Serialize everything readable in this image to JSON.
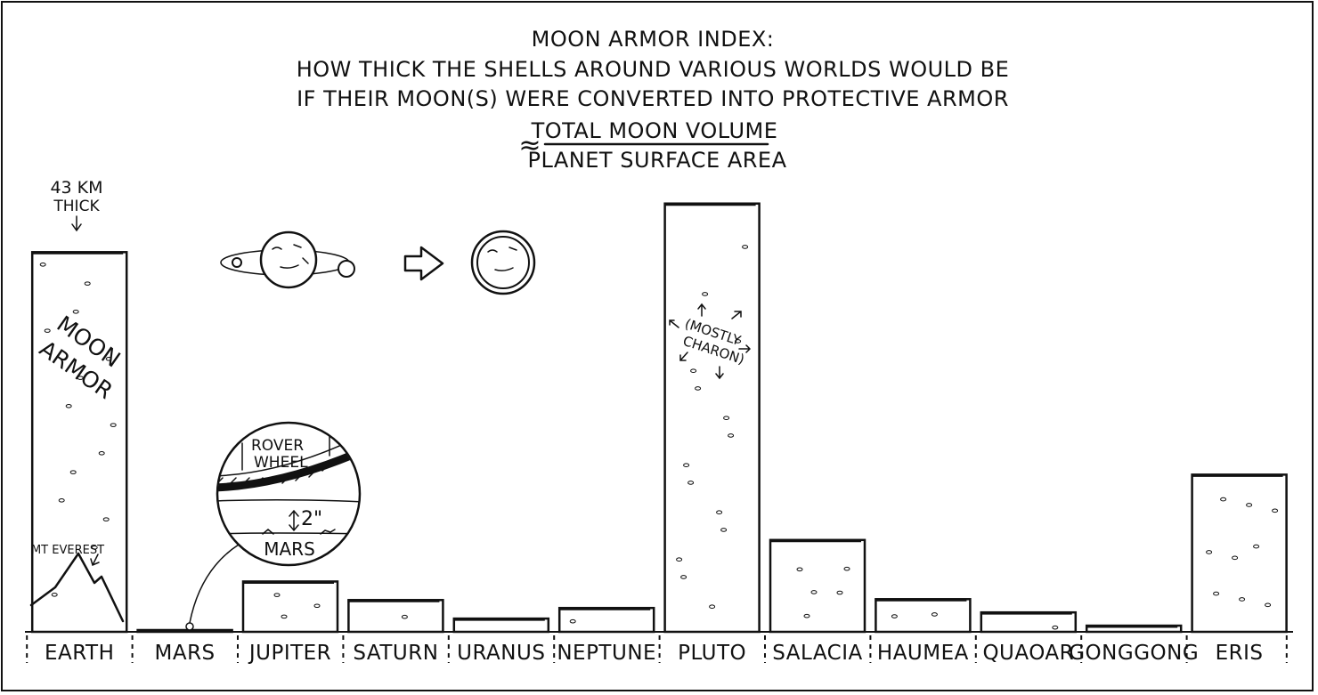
{
  "title": {
    "line1": "MOON ARMOR INDEX:",
    "line2": "HOW THICK THE SHELLS AROUND VARIOUS WORLDS WOULD BE",
    "line3": "IF THEIR MOON(S) WERE CONVERTED INTO PROTECTIVE ARMOR",
    "approx_symbol": "≈",
    "numerator": "TOTAL MOON VOLUME",
    "denominator": "PLANET SURFACE AREA"
  },
  "annotations": {
    "earth_value_line1": "43 KM",
    "earth_value_line2": "THICK",
    "moon_armor_line1": "MOON",
    "moon_armor_line2": "ARMOR",
    "everest": "MT EVEREST",
    "rover_line1": "ROVER",
    "rover_line2": "WHEEL",
    "mars_thickness": "2\"",
    "mars_inset": "MARS",
    "pluto_line1": "(MOSTLY",
    "pluto_line2": "CHARON)"
  },
  "chart_data": {
    "type": "bar",
    "title": "MOON ARMOR INDEX: HOW THICK THE SHELLS AROUND VARIOUS WORLDS WOULD BE IF THEIR MOON(S) WERE CONVERTED INTO PROTECTIVE ARMOR ≈ TOTAL MOON VOLUME / PLANET SURFACE AREA",
    "xlabel": "",
    "ylabel": "",
    "categories": [
      "EARTH",
      "MARS",
      "JUPITER",
      "SATURN",
      "URANUS",
      "NEPTUNE",
      "PLUTO",
      "SALACIA",
      "HAUMEA",
      "QUAOAR",
      "GONGGONG",
      "ERIS"
    ],
    "values": [
      43,
      5e-05,
      5.7,
      3.6,
      1.5,
      2.7,
      48.5,
      10.4,
      3.7,
      2.2,
      0.7,
      17.8
    ],
    "units": "km",
    "ylim": [
      0,
      52
    ],
    "grid": false,
    "legend": "none",
    "colors": {
      "ink": "#111111",
      "fill": "#ffffff"
    }
  }
}
